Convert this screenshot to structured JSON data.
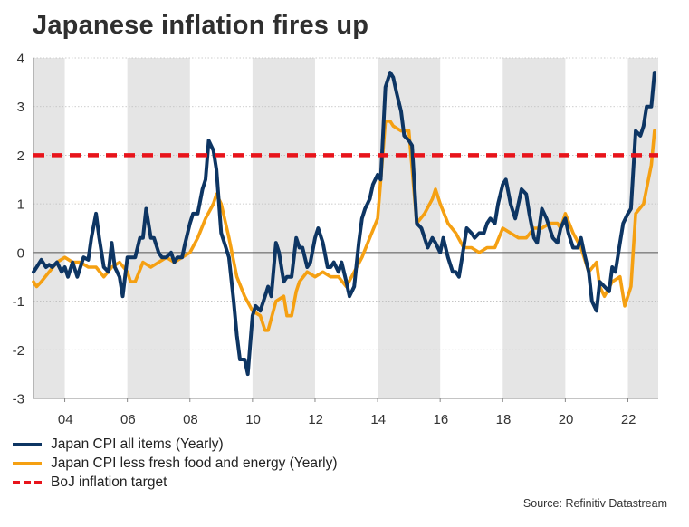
{
  "title": "Japanese inflation fires up",
  "source": "Source: Refinitiv Datastream",
  "colors": {
    "cpi_all": "#0d3563",
    "cpi_core": "#f5a012",
    "target": "#e8141b",
    "band": "#e5e5e5"
  },
  "chart_data": {
    "type": "line",
    "title": "Japanese inflation fires up",
    "x_domain": [
      2003.0,
      2022.97
    ],
    "ylim": [
      -3,
      4
    ],
    "y_ticks": [
      4,
      3,
      2,
      1,
      0,
      -1,
      -2,
      -3
    ],
    "x_ticks": [
      {
        "value": 2004,
        "label": "04"
      },
      {
        "value": 2006,
        "label": "06"
      },
      {
        "value": 2008,
        "label": "08"
      },
      {
        "value": 2010,
        "label": "10"
      },
      {
        "value": 2012,
        "label": "12"
      },
      {
        "value": 2014,
        "label": "14"
      },
      {
        "value": 2016,
        "label": "16"
      },
      {
        "value": 2018,
        "label": "18"
      },
      {
        "value": 2020,
        "label": "20"
      },
      {
        "value": 2022,
        "label": "22"
      }
    ],
    "shaded_periods": [
      [
        2003.0,
        2004.0
      ],
      [
        2006.0,
        2008.0
      ],
      [
        2010.0,
        2012.0
      ],
      [
        2014.0,
        2016.0
      ],
      [
        2018.0,
        2020.0
      ],
      [
        2022.0,
        2022.97
      ]
    ],
    "reference_line": {
      "name": "BoJ inflation target",
      "y": 2
    },
    "legend": {
      "position": "bottom-left"
    },
    "series": [
      {
        "name": "Japan CPI all items (Yearly)",
        "key": "cpi_all",
        "points": [
          [
            2003.0,
            -0.4
          ],
          [
            2003.1,
            -0.3
          ],
          [
            2003.25,
            -0.15
          ],
          [
            2003.4,
            -0.3
          ],
          [
            2003.5,
            -0.25
          ],
          [
            2003.6,
            -0.3
          ],
          [
            2003.75,
            -0.2
          ],
          [
            2003.9,
            -0.4
          ],
          [
            2004.0,
            -0.3
          ],
          [
            2004.1,
            -0.5
          ],
          [
            2004.25,
            -0.2
          ],
          [
            2004.4,
            -0.5
          ],
          [
            2004.5,
            -0.3
          ],
          [
            2004.6,
            -0.1
          ],
          [
            2004.75,
            -0.15
          ],
          [
            2004.85,
            0.3
          ],
          [
            2005.0,
            0.8
          ],
          [
            2005.1,
            0.3
          ],
          [
            2005.25,
            -0.3
          ],
          [
            2005.4,
            -0.4
          ],
          [
            2005.5,
            0.2
          ],
          [
            2005.6,
            -0.3
          ],
          [
            2005.75,
            -0.5
          ],
          [
            2005.85,
            -0.9
          ],
          [
            2006.0,
            -0.1
          ],
          [
            2006.1,
            -0.1
          ],
          [
            2006.25,
            -0.1
          ],
          [
            2006.4,
            0.3
          ],
          [
            2006.5,
            0.3
          ],
          [
            2006.6,
            0.9
          ],
          [
            2006.75,
            0.3
          ],
          [
            2006.85,
            0.3
          ],
          [
            2007.0,
            0.0
          ],
          [
            2007.1,
            -0.1
          ],
          [
            2007.25,
            -0.1
          ],
          [
            2007.4,
            0.0
          ],
          [
            2007.5,
            -0.2
          ],
          [
            2007.6,
            -0.1
          ],
          [
            2007.75,
            -0.1
          ],
          [
            2007.85,
            0.2
          ],
          [
            2008.0,
            0.6
          ],
          [
            2008.1,
            0.8
          ],
          [
            2008.25,
            0.8
          ],
          [
            2008.4,
            1.3
          ],
          [
            2008.5,
            1.5
          ],
          [
            2008.6,
            2.3
          ],
          [
            2008.75,
            2.1
          ],
          [
            2008.85,
            1.7
          ],
          [
            2009.0,
            0.4
          ],
          [
            2009.1,
            0.2
          ],
          [
            2009.25,
            -0.1
          ],
          [
            2009.4,
            -1.0
          ],
          [
            2009.5,
            -1.7
          ],
          [
            2009.6,
            -2.2
          ],
          [
            2009.75,
            -2.2
          ],
          [
            2009.85,
            -2.5
          ],
          [
            2010.0,
            -1.3
          ],
          [
            2010.1,
            -1.1
          ],
          [
            2010.25,
            -1.2
          ],
          [
            2010.4,
            -0.9
          ],
          [
            2010.5,
            -0.7
          ],
          [
            2010.6,
            -0.9
          ],
          [
            2010.75,
            0.2
          ],
          [
            2010.85,
            0.0
          ],
          [
            2011.0,
            -0.6
          ],
          [
            2011.1,
            -0.5
          ],
          [
            2011.25,
            -0.5
          ],
          [
            2011.4,
            0.3
          ],
          [
            2011.5,
            0.1
          ],
          [
            2011.6,
            0.1
          ],
          [
            2011.75,
            -0.3
          ],
          [
            2011.85,
            -0.2
          ],
          [
            2012.0,
            0.3
          ],
          [
            2012.1,
            0.5
          ],
          [
            2012.25,
            0.2
          ],
          [
            2012.4,
            -0.3
          ],
          [
            2012.5,
            -0.3
          ],
          [
            2012.6,
            -0.2
          ],
          [
            2012.75,
            -0.4
          ],
          [
            2012.85,
            -0.2
          ],
          [
            2013.0,
            -0.6
          ],
          [
            2013.1,
            -0.9
          ],
          [
            2013.25,
            -0.7
          ],
          [
            2013.4,
            0.2
          ],
          [
            2013.5,
            0.7
          ],
          [
            2013.6,
            0.9
          ],
          [
            2013.75,
            1.1
          ],
          [
            2013.85,
            1.4
          ],
          [
            2014.0,
            1.6
          ],
          [
            2014.1,
            1.5
          ],
          [
            2014.25,
            3.4
          ],
          [
            2014.4,
            3.7
          ],
          [
            2014.5,
            3.6
          ],
          [
            2014.6,
            3.3
          ],
          [
            2014.75,
            2.9
          ],
          [
            2014.85,
            2.4
          ],
          [
            2015.0,
            2.3
          ],
          [
            2015.1,
            2.2
          ],
          [
            2015.25,
            0.6
          ],
          [
            2015.4,
            0.5
          ],
          [
            2015.5,
            0.3
          ],
          [
            2015.6,
            0.1
          ],
          [
            2015.75,
            0.3
          ],
          [
            2015.85,
            0.2
          ],
          [
            2016.0,
            0.0
          ],
          [
            2016.1,
            0.3
          ],
          [
            2016.25,
            -0.1
          ],
          [
            2016.4,
            -0.4
          ],
          [
            2016.5,
            -0.4
          ],
          [
            2016.6,
            -0.5
          ],
          [
            2016.75,
            0.1
          ],
          [
            2016.85,
            0.5
          ],
          [
            2017.0,
            0.4
          ],
          [
            2017.1,
            0.3
          ],
          [
            2017.25,
            0.4
          ],
          [
            2017.4,
            0.4
          ],
          [
            2017.5,
            0.6
          ],
          [
            2017.6,
            0.7
          ],
          [
            2017.75,
            0.6
          ],
          [
            2017.85,
            1.0
          ],
          [
            2018.0,
            1.4
          ],
          [
            2018.1,
            1.5
          ],
          [
            2018.25,
            1.0
          ],
          [
            2018.4,
            0.7
          ],
          [
            2018.5,
            1.0
          ],
          [
            2018.6,
            1.3
          ],
          [
            2018.75,
            1.2
          ],
          [
            2018.85,
            0.8
          ],
          [
            2019.0,
            0.3
          ],
          [
            2019.1,
            0.2
          ],
          [
            2019.25,
            0.9
          ],
          [
            2019.4,
            0.7
          ],
          [
            2019.5,
            0.5
          ],
          [
            2019.6,
            0.3
          ],
          [
            2019.75,
            0.2
          ],
          [
            2019.85,
            0.5
          ],
          [
            2020.0,
            0.7
          ],
          [
            2020.1,
            0.4
          ],
          [
            2020.25,
            0.1
          ],
          [
            2020.4,
            0.1
          ],
          [
            2020.5,
            0.3
          ],
          [
            2020.6,
            0.0
          ],
          [
            2020.75,
            -0.4
          ],
          [
            2020.85,
            -1.0
          ],
          [
            2021.0,
            -1.2
          ],
          [
            2021.1,
            -0.6
          ],
          [
            2021.25,
            -0.7
          ],
          [
            2021.4,
            -0.8
          ],
          [
            2021.5,
            -0.3
          ],
          [
            2021.6,
            -0.4
          ],
          [
            2021.75,
            0.2
          ],
          [
            2021.85,
            0.6
          ],
          [
            2022.0,
            0.8
          ],
          [
            2022.1,
            0.9
          ],
          [
            2022.25,
            2.5
          ],
          [
            2022.4,
            2.4
          ],
          [
            2022.5,
            2.6
          ],
          [
            2022.6,
            3.0
          ],
          [
            2022.75,
            3.0
          ],
          [
            2022.85,
            3.7
          ]
        ]
      },
      {
        "name": "Japan CPI less fresh food and energy (Yearly)",
        "key": "cpi_core",
        "points": [
          [
            2003.0,
            -0.6
          ],
          [
            2003.1,
            -0.7
          ],
          [
            2003.25,
            -0.6
          ],
          [
            2003.5,
            -0.4
          ],
          [
            2003.75,
            -0.2
          ],
          [
            2004.0,
            -0.1
          ],
          [
            2004.25,
            -0.2
          ],
          [
            2004.5,
            -0.2
          ],
          [
            2004.75,
            -0.3
          ],
          [
            2005.0,
            -0.3
          ],
          [
            2005.25,
            -0.5
          ],
          [
            2005.5,
            -0.3
          ],
          [
            2005.75,
            -0.2
          ],
          [
            2006.0,
            -0.4
          ],
          [
            2006.1,
            -0.6
          ],
          [
            2006.25,
            -0.6
          ],
          [
            2006.5,
            -0.2
          ],
          [
            2006.75,
            -0.3
          ],
          [
            2007.0,
            -0.2
          ],
          [
            2007.25,
            -0.1
          ],
          [
            2007.5,
            -0.2
          ],
          [
            2007.75,
            -0.1
          ],
          [
            2008.0,
            0.0
          ],
          [
            2008.25,
            0.3
          ],
          [
            2008.5,
            0.7
          ],
          [
            2008.75,
            1.0
          ],
          [
            2008.85,
            1.2
          ],
          [
            2009.0,
            1.0
          ],
          [
            2009.25,
            0.3
          ],
          [
            2009.5,
            -0.5
          ],
          [
            2009.75,
            -0.9
          ],
          [
            2010.0,
            -1.2
          ],
          [
            2010.25,
            -1.3
          ],
          [
            2010.4,
            -1.6
          ],
          [
            2010.5,
            -1.6
          ],
          [
            2010.75,
            -1.0
          ],
          [
            2011.0,
            -0.9
          ],
          [
            2011.1,
            -1.3
          ],
          [
            2011.25,
            -1.3
          ],
          [
            2011.4,
            -0.8
          ],
          [
            2011.5,
            -0.6
          ],
          [
            2011.75,
            -0.4
          ],
          [
            2012.0,
            -0.5
          ],
          [
            2012.25,
            -0.4
          ],
          [
            2012.5,
            -0.5
          ],
          [
            2012.75,
            -0.5
          ],
          [
            2013.0,
            -0.7
          ],
          [
            2013.25,
            -0.4
          ],
          [
            2013.5,
            -0.1
          ],
          [
            2013.75,
            0.3
          ],
          [
            2014.0,
            0.7
          ],
          [
            2014.25,
            2.7
          ],
          [
            2014.4,
            2.7
          ],
          [
            2014.5,
            2.6
          ],
          [
            2014.75,
            2.5
          ],
          [
            2015.0,
            2.5
          ],
          [
            2015.25,
            0.6
          ],
          [
            2015.5,
            0.8
          ],
          [
            2015.75,
            1.1
          ],
          [
            2015.85,
            1.3
          ],
          [
            2016.0,
            1.0
          ],
          [
            2016.25,
            0.6
          ],
          [
            2016.5,
            0.4
          ],
          [
            2016.75,
            0.1
          ],
          [
            2017.0,
            0.1
          ],
          [
            2017.25,
            0.0
          ],
          [
            2017.5,
            0.1
          ],
          [
            2017.75,
            0.1
          ],
          [
            2018.0,
            0.5
          ],
          [
            2018.25,
            0.4
          ],
          [
            2018.5,
            0.3
          ],
          [
            2018.75,
            0.3
          ],
          [
            2019.0,
            0.5
          ],
          [
            2019.25,
            0.5
          ],
          [
            2019.5,
            0.6
          ],
          [
            2019.75,
            0.6
          ],
          [
            2019.85,
            0.5
          ],
          [
            2020.0,
            0.8
          ],
          [
            2020.25,
            0.4
          ],
          [
            2020.5,
            0.1
          ],
          [
            2020.75,
            -0.4
          ],
          [
            2021.0,
            -0.2
          ],
          [
            2021.1,
            -0.7
          ],
          [
            2021.25,
            -0.9
          ],
          [
            2021.5,
            -0.6
          ],
          [
            2021.75,
            -0.5
          ],
          [
            2021.9,
            -1.1
          ],
          [
            2022.0,
            -0.9
          ],
          [
            2022.1,
            -0.7
          ],
          [
            2022.25,
            0.8
          ],
          [
            2022.5,
            1.0
          ],
          [
            2022.75,
            1.8
          ],
          [
            2022.85,
            2.5
          ]
        ]
      },
      {
        "name": "BoJ inflation target",
        "key": "target",
        "points": [
          [
            2003.0,
            2
          ],
          [
            2022.97,
            2
          ]
        ]
      }
    ]
  }
}
